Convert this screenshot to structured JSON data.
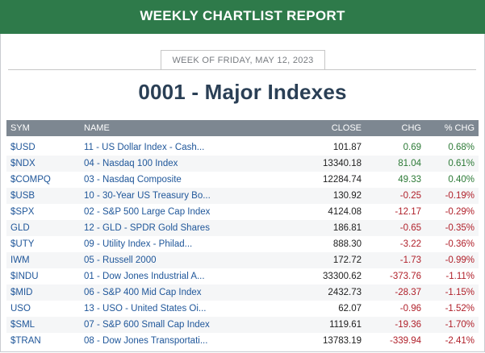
{
  "header": {
    "title": "WEEKLY CHARTLIST REPORT"
  },
  "week_label": "WEEK OF FRIDAY, MAY 12, 2023",
  "page_title": "0001 - Major Indexes",
  "table": {
    "columns": [
      "SYM",
      "NAME",
      "CLOSE",
      "CHG",
      "% CHG"
    ],
    "rows": [
      {
        "sym": "$USD",
        "name": "11 - US Dollar Index - Cash...",
        "close": "101.87",
        "chg": "0.69",
        "pct": "0.68%",
        "dir": "up"
      },
      {
        "sym": "$NDX",
        "name": "04 - Nasdaq 100 Index",
        "close": "13340.18",
        "chg": "81.04",
        "pct": "0.61%",
        "dir": "up"
      },
      {
        "sym": "$COMPQ",
        "name": "03 - Nasdaq Composite",
        "close": "12284.74",
        "chg": "49.33",
        "pct": "0.40%",
        "dir": "up"
      },
      {
        "sym": "$USB",
        "name": "10 - 30-Year US Treasury Bo...",
        "close": "130.92",
        "chg": "-0.25",
        "pct": "-0.19%",
        "dir": "down"
      },
      {
        "sym": "$SPX",
        "name": "02 - S&P 500 Large Cap Index",
        "close": "4124.08",
        "chg": "-12.17",
        "pct": "-0.29%",
        "dir": "down"
      },
      {
        "sym": "GLD",
        "name": "12 - GLD - SPDR Gold Shares",
        "close": "186.81",
        "chg": "-0.65",
        "pct": "-0.35%",
        "dir": "down"
      },
      {
        "sym": "$UTY",
        "name": "09 - Utility Index - Philad...",
        "close": "888.30",
        "chg": "-3.22",
        "pct": "-0.36%",
        "dir": "down"
      },
      {
        "sym": "IWM",
        "name": "05 - Russell 2000",
        "close": "172.72",
        "chg": "-1.73",
        "pct": "-0.99%",
        "dir": "down"
      },
      {
        "sym": "$INDU",
        "name": "01 - Dow Jones Industrial A...",
        "close": "33300.62",
        "chg": "-373.76",
        "pct": "-1.11%",
        "dir": "down"
      },
      {
        "sym": "$MID",
        "name": "06 - S&P 400 Mid Cap Index",
        "close": "2432.73",
        "chg": "-28.37",
        "pct": "-1.15%",
        "dir": "down"
      },
      {
        "sym": "USO",
        "name": "13 - USO - United States Oi...",
        "close": "62.07",
        "chg": "-0.96",
        "pct": "-1.52%",
        "dir": "down"
      },
      {
        "sym": "$SML",
        "name": "07 - S&P 600 Small Cap Index",
        "close": "1119.61",
        "chg": "-19.36",
        "pct": "-1.70%",
        "dir": "down"
      },
      {
        "sym": "$TRAN",
        "name": "08 - Dow Jones Transportati...",
        "close": "13783.19",
        "chg": "-339.94",
        "pct": "-2.41%",
        "dir": "down"
      }
    ]
  },
  "colors": {
    "header_bg": "#2e7a4a",
    "up": "#2c7a36",
    "down": "#b0202a",
    "link": "#20579a"
  }
}
